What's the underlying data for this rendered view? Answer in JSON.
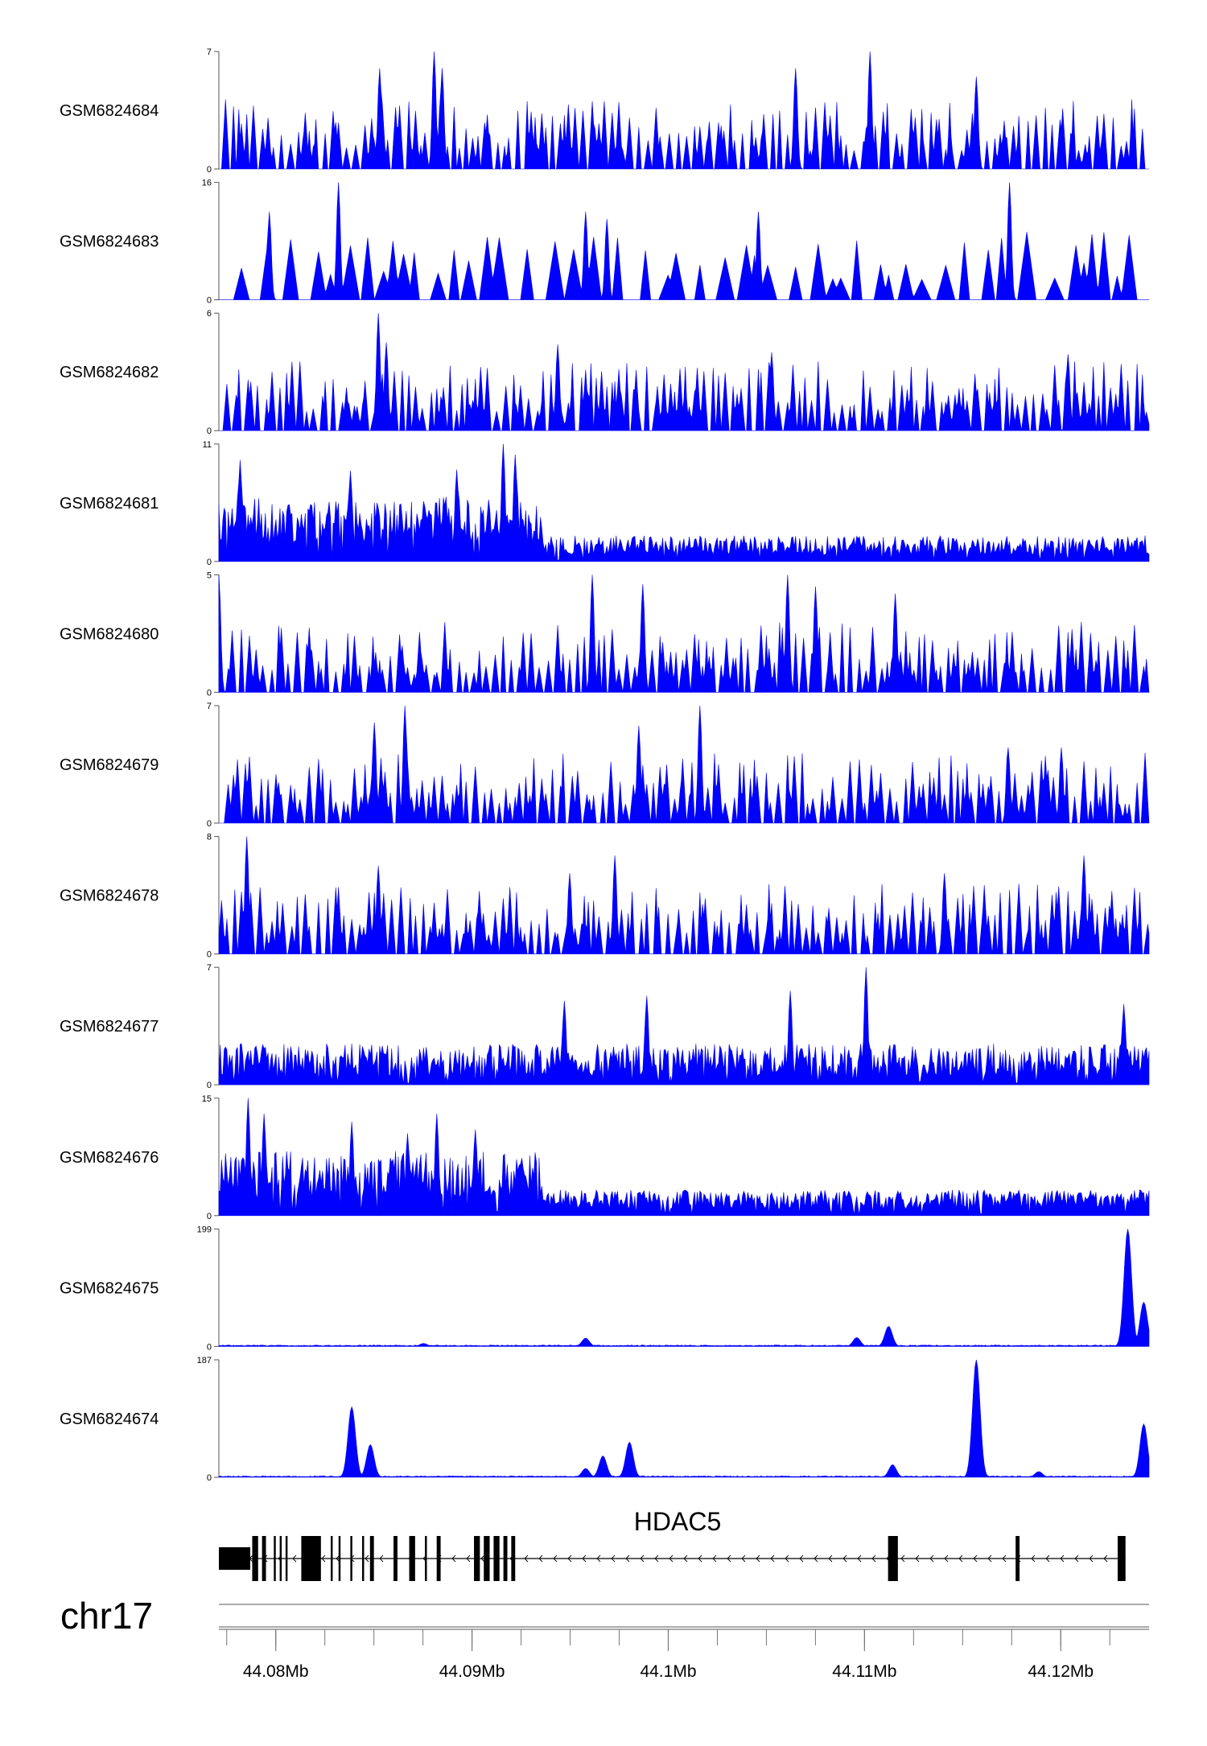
{
  "chart_data": {
    "type": "area",
    "color": "#0000ff",
    "chromosome": "chr17",
    "x_range_mb": [
      44.0771,
      44.1245
    ],
    "x_ticks": [
      {
        "value": 44.08,
        "label": "44.08Mb"
      },
      {
        "value": 44.09,
        "label": "44.09Mb"
      },
      {
        "value": 44.1,
        "label": "44.1Mb"
      },
      {
        "value": 44.11,
        "label": "44.11Mb"
      },
      {
        "value": 44.12,
        "label": "44.12Mb"
      }
    ],
    "tracks": [
      {
        "name": "GSM6824684",
        "ymin": 0,
        "ymax": 7,
        "min_label": "0",
        "max_label": "7",
        "profile": "sparse",
        "peaks": [
          [
            44.0881,
            7
          ],
          [
            44.1103,
            7
          ],
          [
            44.0853,
            6
          ],
          [
            44.0885,
            6
          ],
          [
            44.1065,
            6
          ],
          [
            44.1157,
            5.5
          ]
        ]
      },
      {
        "name": "GSM6824683",
        "ymin": 0,
        "ymax": 16,
        "min_label": "0",
        "max_label": "16",
        "profile": "sparse_triangles",
        "peaks": [
          [
            44.0832,
            16
          ],
          [
            44.1174,
            16
          ],
          [
            44.0797,
            12
          ],
          [
            44.1046,
            12
          ],
          [
            44.0969,
            11
          ],
          [
            44.0958,
            12
          ]
        ]
      },
      {
        "name": "GSM6824682",
        "ymin": 0,
        "ymax": 6,
        "min_label": "0",
        "max_label": "6",
        "profile": "sparse",
        "peaks": [
          [
            44.0852,
            6
          ],
          [
            44.0856,
            4.5
          ],
          [
            44.0944,
            4.4
          ],
          [
            44.1053,
            4
          ],
          [
            44.1204,
            3.9
          ]
        ]
      },
      {
        "name": "GSM6824681",
        "ymin": 0,
        "ymax": 11,
        "min_label": "0",
        "max_label": "11",
        "profile": "dense_left",
        "peaks": [
          [
            44.0916,
            11
          ],
          [
            44.0922,
            10
          ],
          [
            44.0782,
            9.5
          ],
          [
            44.0892,
            8.6
          ],
          [
            44.0838,
            8.5
          ]
        ]
      },
      {
        "name": "GSM6824680",
        "ymin": 0,
        "ymax": 5,
        "min_label": "0",
        "max_label": "5",
        "profile": "sparse",
        "peaks": [
          [
            44.0771,
            5
          ],
          [
            44.0961,
            5
          ],
          [
            44.1061,
            5
          ],
          [
            44.0987,
            4.6
          ],
          [
            44.1075,
            4.5
          ],
          [
            44.1116,
            4.2
          ]
        ]
      },
      {
        "name": "GSM6824679",
        "ymin": 0,
        "ymax": 7,
        "min_label": "0",
        "max_label": "7",
        "profile": "sparse",
        "peaks": [
          [
            44.0866,
            7
          ],
          [
            44.1016,
            7
          ],
          [
            44.085,
            6
          ],
          [
            44.0985,
            5.8
          ],
          [
            44.1173,
            4.5
          ],
          [
            44.12,
            4.5
          ]
        ]
      },
      {
        "name": "GSM6824678",
        "ymin": 0,
        "ymax": 8,
        "min_label": "0",
        "max_label": "8",
        "profile": "sparse",
        "peaks": [
          [
            44.0785,
            8
          ],
          [
            44.0973,
            6.7
          ],
          [
            44.1212,
            6.7
          ],
          [
            44.0852,
            6
          ],
          [
            44.095,
            5.5
          ],
          [
            44.1141,
            5.5
          ]
        ]
      },
      {
        "name": "GSM6824677",
        "ymin": 0,
        "ymax": 7,
        "min_label": "0",
        "max_label": "7",
        "profile": "dense",
        "peaks": [
          [
            44.1101,
            7
          ],
          [
            44.1062,
            5.6
          ],
          [
            44.1232,
            4.8
          ],
          [
            44.0989,
            5.3
          ],
          [
            44.0947,
            5
          ]
        ]
      },
      {
        "name": "GSM6824676",
        "ymin": 0,
        "ymax": 15,
        "min_label": "0",
        "max_label": "15",
        "profile": "dense_left",
        "peaks": [
          [
            44.0786,
            15
          ],
          [
            44.0794,
            13
          ],
          [
            44.0882,
            13
          ],
          [
            44.0839,
            12
          ],
          [
            44.0902,
            11
          ],
          [
            44.0867,
            10.5
          ]
        ]
      },
      {
        "name": "GSM6824675",
        "ymin": 0,
        "ymax": 199,
        "min_label": "0",
        "max_label": "199",
        "profile": "low",
        "peaks": [
          [
            44.1234,
            199
          ],
          [
            44.1242,
            75
          ],
          [
            44.1112,
            34
          ],
          [
            44.1096,
            15
          ],
          [
            44.0958,
            14
          ],
          [
            44.0875,
            5
          ]
        ]
      },
      {
        "name": "GSM6824674",
        "ymin": 0,
        "ymax": 187,
        "min_label": "0",
        "max_label": "187",
        "profile": "low",
        "peaks": [
          [
            44.1157,
            187
          ],
          [
            44.0839,
            112
          ],
          [
            44.0848,
            52
          ],
          [
            44.098,
            56
          ],
          [
            44.0967,
            34
          ],
          [
            44.1242,
            85
          ],
          [
            44.0958,
            14
          ],
          [
            44.1114,
            20
          ],
          [
            44.1189,
            9
          ]
        ]
      }
    ],
    "gene": {
      "name": "HDAC5",
      "strand": "-",
      "start": 44.0771,
      "end": 44.1233,
      "exons": [
        {
          "start": 44.0771,
          "end": 44.0787,
          "kind": "utr"
        },
        {
          "start": 44.0788,
          "end": 44.0791,
          "kind": "cds"
        },
        {
          "start": 44.0793,
          "end": 44.0795,
          "kind": "cds"
        },
        {
          "start": 44.0799,
          "end": 44.08,
          "kind": "cds"
        },
        {
          "start": 44.0802,
          "end": 44.0803,
          "kind": "cds"
        },
        {
          "start": 44.0805,
          "end": 44.0806,
          "kind": "cds"
        },
        {
          "start": 44.0813,
          "end": 44.0823,
          "kind": "cds"
        },
        {
          "start": 44.0828,
          "end": 44.0829,
          "kind": "cds"
        },
        {
          "start": 44.0832,
          "end": 44.0833,
          "kind": "cds"
        },
        {
          "start": 44.0838,
          "end": 44.0839,
          "kind": "cds"
        },
        {
          "start": 44.0844,
          "end": 44.0845,
          "kind": "cds"
        },
        {
          "start": 44.0848,
          "end": 44.085,
          "kind": "cds"
        },
        {
          "start": 44.086,
          "end": 44.0862,
          "kind": "cds"
        },
        {
          "start": 44.0868,
          "end": 44.0871,
          "kind": "cds"
        },
        {
          "start": 44.0876,
          "end": 44.0877,
          "kind": "cds"
        },
        {
          "start": 44.0882,
          "end": 44.0884,
          "kind": "cds"
        },
        {
          "start": 44.0901,
          "end": 44.0904,
          "kind": "cds"
        },
        {
          "start": 44.0906,
          "end": 44.0909,
          "kind": "cds"
        },
        {
          "start": 44.0911,
          "end": 44.0914,
          "kind": "cds"
        },
        {
          "start": 44.0916,
          "end": 44.0918,
          "kind": "cds"
        },
        {
          "start": 44.092,
          "end": 44.0922,
          "kind": "cds"
        },
        {
          "start": 44.1112,
          "end": 44.1117,
          "kind": "cds"
        },
        {
          "start": 44.1177,
          "end": 44.1179,
          "kind": "cds"
        },
        {
          "start": 44.1229,
          "end": 44.1233,
          "kind": "cds"
        }
      ]
    }
  }
}
